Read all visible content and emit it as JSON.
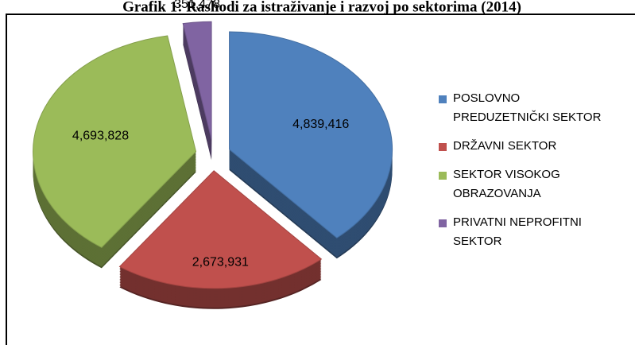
{
  "chart_data": {
    "type": "pie",
    "title": "Grafik 1: Rashodi za istraživanje i razvoj po sektorima (2014)",
    "series": [
      {
        "name": "POSLOVNO PREDUZETNIČKI SEKTOR",
        "color": "#4f81bd",
        "values": [
          4839416
        ],
        "value_labels": [
          "4,839,416"
        ]
      },
      {
        "name": "DRŽAVNI SEKTOR",
        "color": "#c0504d",
        "values": [
          2673931
        ],
        "value_labels": [
          "2,673,931"
        ]
      },
      {
        "name": "SEKTOR VISOKOG OBRAZOVANJA",
        "color": "#9bbb59",
        "values": [
          4693828
        ],
        "value_labels": [
          "4,693,828"
        ]
      },
      {
        "name": "PRIVATNI NEPROFITNI SEKTOR",
        "color": "#8064a2",
        "values": [
          351478
        ],
        "value_labels": [
          "351,478"
        ]
      }
    ],
    "legend": "right"
  }
}
